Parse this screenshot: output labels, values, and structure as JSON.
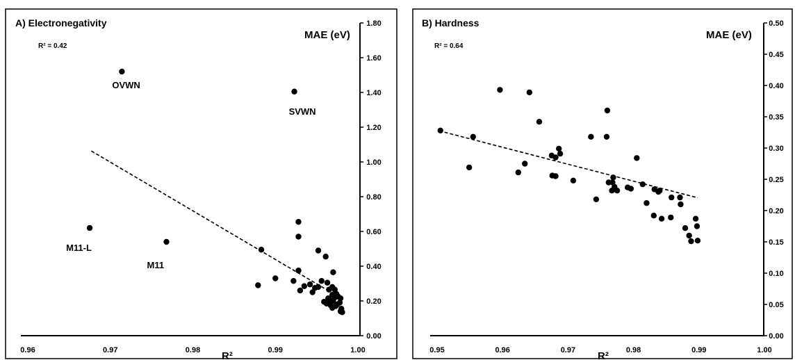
{
  "chart_data": [
    {
      "type": "scatter",
      "title": "A) Electronegativity",
      "annotation": "R² = 0.42",
      "xlabel": "R²",
      "ylabel": "MAE (eV)",
      "xlim": [
        0.96,
        1.0
      ],
      "ylim": [
        0.0,
        1.8
      ],
      "xticks": [
        "0.96",
        "0.97",
        "0.98",
        "0.99",
        "1.00"
      ],
      "yticks": [
        "0.00",
        "0.20",
        "0.40",
        "0.60",
        "0.80",
        "1.00",
        "1.20",
        "1.40",
        "1.60",
        "1.80"
      ],
      "trendline": [
        [
          0.9677,
          1.063
        ],
        [
          0.9962,
          0.265
        ]
      ],
      "labels": [
        {
          "text": "OVWN",
          "x": 0.9714,
          "y": 1.52
        },
        {
          "text": "SVWN",
          "x": 0.9923,
          "y": 1.405
        },
        {
          "text": "M11-L",
          "x": 0.9675,
          "y": 0.62
        },
        {
          "text": "M11",
          "x": 0.9768,
          "y": 0.54
        }
      ],
      "points": [
        [
          0.9714,
          1.52
        ],
        [
          0.9923,
          1.405
        ],
        [
          0.9675,
          0.62
        ],
        [
          0.9768,
          0.54
        ],
        [
          0.9928,
          0.655
        ],
        [
          0.9928,
          0.57
        ],
        [
          0.9952,
          0.49
        ],
        [
          0.9961,
          0.455
        ],
        [
          0.9883,
          0.495
        ],
        [
          0.9928,
          0.375
        ],
        [
          0.997,
          0.365
        ],
        [
          0.99,
          0.33
        ],
        [
          0.9922,
          0.315
        ],
        [
          0.9879,
          0.29
        ],
        [
          0.9942,
          0.295
        ],
        [
          0.9956,
          0.315
        ],
        [
          0.9963,
          0.305
        ],
        [
          0.9952,
          0.28
        ],
        [
          0.9948,
          0.275
        ],
        [
          0.9935,
          0.285
        ],
        [
          0.993,
          0.26
        ],
        [
          0.9945,
          0.25
        ],
        [
          0.9969,
          0.28
        ],
        [
          0.9965,
          0.265
        ],
        [
          0.9972,
          0.265
        ],
        [
          0.9969,
          0.235
        ],
        [
          0.9974,
          0.24
        ],
        [
          0.9964,
          0.215
        ],
        [
          0.9959,
          0.195
        ],
        [
          0.9962,
          0.185
        ],
        [
          0.9966,
          0.205
        ],
        [
          0.997,
          0.2
        ],
        [
          0.9972,
          0.22
        ],
        [
          0.9976,
          0.225
        ],
        [
          0.9979,
          0.215
        ],
        [
          0.9967,
          0.175
        ],
        [
          0.9969,
          0.16
        ],
        [
          0.9973,
          0.17
        ],
        [
          0.9975,
          0.18
        ],
        [
          0.9978,
          0.19
        ],
        [
          0.998,
          0.155
        ],
        [
          0.9979,
          0.14
        ],
        [
          0.9981,
          0.135
        ]
      ]
    },
    {
      "type": "scatter",
      "title": "B) Hardness",
      "annotation": "R² = 0.64",
      "xlabel": "R²",
      "ylabel": "MAE (eV)",
      "xlim": [
        0.95,
        1.0
      ],
      "ylim": [
        0.0,
        0.5
      ],
      "xticks": [
        "0.95",
        "0.96",
        "0.97",
        "0.98",
        "0.99",
        "1.00"
      ],
      "yticks": [
        "0.00",
        "0.05",
        "0.10",
        "0.15",
        "0.20",
        "0.25",
        "0.30",
        "0.35",
        "0.40",
        "0.45",
        "0.50"
      ],
      "trendline": [
        [
          0.9503,
          0.3275
        ],
        [
          0.9898,
          0.2205
        ]
      ],
      "points": [
        [
          0.9505,
          0.328
        ],
        [
          0.9555,
          0.318
        ],
        [
          0.9549,
          0.269
        ],
        [
          0.9596,
          0.393
        ],
        [
          0.9641,
          0.389
        ],
        [
          0.9656,
          0.342
        ],
        [
          0.9624,
          0.261
        ],
        [
          0.9634,
          0.275
        ],
        [
          0.9675,
          0.288
        ],
        [
          0.9686,
          0.299
        ],
        [
          0.9688,
          0.291
        ],
        [
          0.9681,
          0.285
        ],
        [
          0.9681,
          0.255
        ],
        [
          0.9676,
          0.256
        ],
        [
          0.9708,
          0.248
        ],
        [
          0.9735,
          0.318
        ],
        [
          0.976,
          0.36
        ],
        [
          0.9759,
          0.318
        ],
        [
          0.9743,
          0.218
        ],
        [
          0.9769,
          0.253
        ],
        [
          0.9768,
          0.245
        ],
        [
          0.9771,
          0.238
        ],
        [
          0.9775,
          0.232
        ],
        [
          0.9762,
          0.245
        ],
        [
          0.9767,
          0.232
        ],
        [
          0.9805,
          0.284
        ],
        [
          0.9814,
          0.242
        ],
        [
          0.9796,
          0.235
        ],
        [
          0.9791,
          0.237
        ],
        [
          0.982,
          0.212
        ],
        [
          0.9832,
          0.234
        ],
        [
          0.9838,
          0.23
        ],
        [
          0.984,
          0.232
        ],
        [
          0.9858,
          0.221
        ],
        [
          0.9871,
          0.221
        ],
        [
          0.9872,
          0.21
        ],
        [
          0.9831,
          0.192
        ],
        [
          0.9843,
          0.187
        ],
        [
          0.9857,
          0.189
        ],
        [
          0.9879,
          0.172
        ],
        [
          0.9895,
          0.187
        ],
        [
          0.9897,
          0.175
        ],
        [
          0.9885,
          0.16
        ],
        [
          0.9888,
          0.151
        ],
        [
          0.9898,
          0.152
        ]
      ]
    }
  ]
}
